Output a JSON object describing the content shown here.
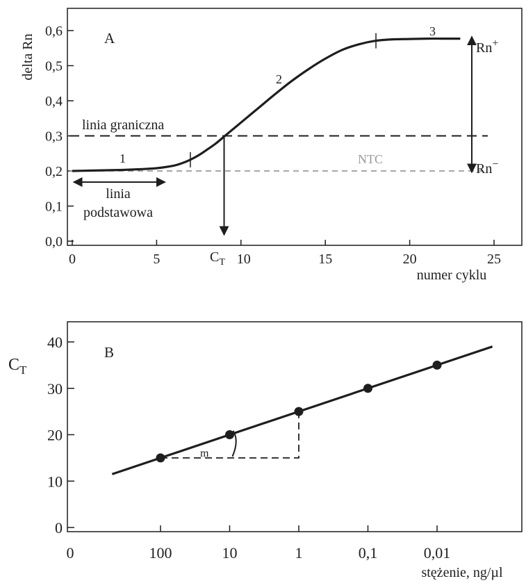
{
  "chart_data": [
    {
      "panel": "A",
      "type": "line",
      "ylabel": "delta Rn",
      "xlabel": "numer cyklu",
      "xlim": [
        0,
        25
      ],
      "ylim": [
        0,
        0.6
      ],
      "x_ticks": [
        0,
        5,
        10,
        15,
        20,
        25
      ],
      "x_tick_labels": [
        "0",
        "5",
        "10",
        "15",
        "20",
        "25"
      ],
      "y_ticks": [
        0,
        0.1,
        0.2,
        0.3,
        0.4,
        0.5,
        0.6
      ],
      "y_tick_labels": [
        "0,0",
        "0,1",
        "0,2",
        "0,3",
        "0,4",
        "0,5",
        "0,6"
      ],
      "series": [
        {
          "x": [
            0,
            1,
            2,
            3,
            4,
            5,
            6,
            6.5,
            7,
            7.5,
            8,
            8.5,
            9,
            9.5,
            10,
            11,
            12,
            13,
            14,
            15,
            16,
            17,
            18,
            19,
            20,
            21,
            22,
            23
          ],
          "y": [
            0.2,
            0.201,
            0.202,
            0.203,
            0.205,
            0.208,
            0.215,
            0.222,
            0.232,
            0.245,
            0.261,
            0.278,
            0.298,
            0.318,
            0.338,
            0.378,
            0.418,
            0.456,
            0.49,
            0.52,
            0.545,
            0.561,
            0.571,
            0.575,
            0.576,
            0.577,
            0.577,
            0.577
          ]
        }
      ],
      "annotations": {
        "panel_label": "A",
        "threshold_label": "linia graniczna",
        "threshold_value": 0.3,
        "ntc_label": "NTC",
        "ntc_value": 0.2,
        "baseline_label_line1": "linia",
        "baseline_label_line2": "podstawowa",
        "baseline_range": [
          0,
          5.5
        ],
        "ct_label": "C",
        "ct_subscript": "T",
        "ct_value": 9,
        "phase_labels": [
          "1",
          "2",
          "3"
        ],
        "phase_boundaries": [
          7,
          18
        ],
        "rn_plus": "Rn",
        "rn_plus_sup": "+",
        "rn_minus": "Rn",
        "rn_minus_sup": "−"
      }
    },
    {
      "panel": "B",
      "type": "scatter",
      "ylabel": "C",
      "ylabel_subscript": "T",
      "xlabel": "stężenie, ng/µl",
      "ylim": [
        0,
        40
      ],
      "y_ticks": [
        0,
        10,
        20,
        30,
        40
      ],
      "y_tick_labels": [
        "0",
        "10",
        "20",
        "30",
        "40"
      ],
      "x_origin_label": "0",
      "categories": [
        "100",
        "10",
        "1",
        "0,1",
        "0,01"
      ],
      "values": [
        15,
        20,
        25,
        30,
        35
      ],
      "fit_line": {
        "x_start": -0.7,
        "x_end": 4.8
      },
      "annotations": {
        "panel_label": "B",
        "slope_label": "m"
      }
    }
  ]
}
